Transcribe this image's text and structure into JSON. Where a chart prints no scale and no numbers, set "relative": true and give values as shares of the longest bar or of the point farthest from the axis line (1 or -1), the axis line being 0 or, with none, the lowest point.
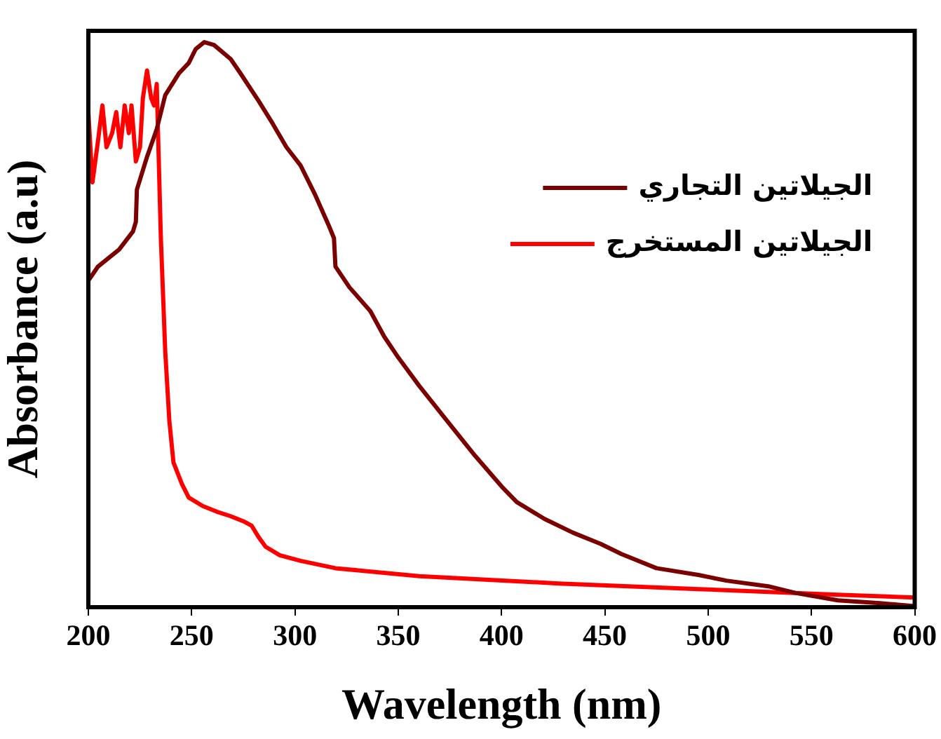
{
  "chart_data": {
    "type": "line",
    "xlabel": "Wavelength (nm)",
    "ylabel": "Absorbance (a.u)",
    "relative": true,
    "xlim": [
      200,
      600
    ],
    "xticks": [
      200,
      250,
      300,
      350,
      400,
      450,
      500,
      550,
      600
    ],
    "grid": false,
    "legend": "top right",
    "marker": "none",
    "line_style": "solid",
    "series": [
      {
        "name": "الجيلاتين التجاري",
        "color": "#7b0000",
        "x": [
          200,
          204.7,
          214.9,
          221.6,
          223,
          223.5,
          228.4,
          233.1,
          237.2,
          243.9,
          248.6,
          252,
          256.1,
          260.8,
          268.9,
          273.6,
          282.4,
          289.2,
          295.9,
          302.7,
          309.5,
          316.2,
          318.9,
          319.6,
          326.4,
          336.5,
          343.2,
          350,
          360.1,
          373.6,
          387.2,
          400.7,
          407.4,
          420.9,
          434.5,
          448,
          458.1,
          475,
          495.3,
          508.8,
          529.1,
          542.6,
          562.8,
          583.1,
          600
        ],
        "values": [
          0.578,
          0.603,
          0.633,
          0.665,
          0.682,
          0.739,
          0.797,
          0.846,
          0.906,
          0.945,
          0.963,
          0.988,
          1,
          0.995,
          0.97,
          0.945,
          0.896,
          0.856,
          0.814,
          0.782,
          0.732,
          0.677,
          0.653,
          0.603,
          0.566,
          0.524,
          0.479,
          0.442,
          0.392,
          0.33,
          0.268,
          0.211,
          0.186,
          0.156,
          0.132,
          0.112,
          0.094,
          0.069,
          0.057,
          0.047,
          0.037,
          0.025,
          0.012,
          0.007,
          0.002
        ]
      },
      {
        "name": "الجيلاتين المستخرج",
        "color": "#ff0000",
        "x": [
          200,
          202,
          204.7,
          206.8,
          208.8,
          211.5,
          213.5,
          215.5,
          217.6,
          219.6,
          220.9,
          223,
          225,
          226.4,
          228.4,
          230.4,
          231.8,
          233.1,
          235.1,
          237.2,
          239.2,
          241.2,
          245.3,
          248.6,
          255.4,
          262.2,
          268.9,
          275.7,
          279.1,
          282.4,
          285.8,
          292.6,
          302.7,
          319.6,
          360.1,
          427.7,
          495.3,
          562.8,
          600
        ],
        "values": [
          0.876,
          0.752,
          0.826,
          0.888,
          0.814,
          0.839,
          0.876,
          0.814,
          0.888,
          0.839,
          0.888,
          0.789,
          0.814,
          0.901,
          0.95,
          0.901,
          0.888,
          0.926,
          0.653,
          0.454,
          0.33,
          0.256,
          0.218,
          0.194,
          0.179,
          0.169,
          0.161,
          0.151,
          0.144,
          0.124,
          0.107,
          0.092,
          0.082,
          0.069,
          0.055,
          0.042,
          0.032,
          0.022,
          0.017
        ]
      }
    ]
  }
}
